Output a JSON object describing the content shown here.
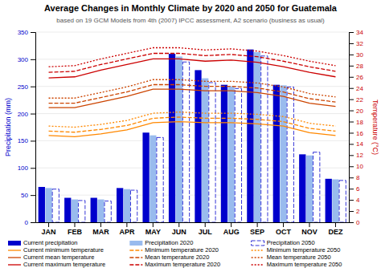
{
  "chart_data": {
    "type": "bar",
    "title": "Average Changes in Monthly Climate by 2020 and 2050 for Guatemala",
    "subtitle": "based on 19 GCM Models from 4th (2007) IPCC assessment, A2 scenario (business as usual)",
    "ylabel": "Precipitation (mm)",
    "y2label": "Temperature (°C)",
    "categories": [
      "JAN",
      "FEB",
      "MAR",
      "APR",
      "MAY",
      "JUN",
      "JUL",
      "AUG",
      "SEP",
      "OCT",
      "NOV",
      "DEZ"
    ],
    "ylim": [
      0,
      350
    ],
    "yticks": [
      0,
      50,
      100,
      150,
      200,
      250,
      300,
      350
    ],
    "y2lim": [
      0,
      34
    ],
    "y2ticks": [
      0,
      2,
      4,
      6,
      8,
      10,
      12,
      14,
      16,
      18,
      20,
      22,
      24,
      26,
      28,
      30,
      32,
      34
    ],
    "grid": true,
    "legend": "bottom",
    "series": [
      {
        "name": "Current precipitation",
        "type": "bar",
        "color": "#0000cc",
        "values": [
          65,
          45,
          45,
          63,
          165,
          310,
          280,
          253,
          318,
          253,
          125,
          80
        ]
      },
      {
        "name": "Precipitation 2020",
        "type": "bar",
        "color": "#99bbee",
        "values": [
          63,
          42,
          42,
          61,
          160,
          305,
          265,
          250,
          313,
          252,
          123,
          79
        ]
      },
      {
        "name": "Precipitation 2050",
        "type": "bar",
        "color": "#0000cc",
        "line_style": "dashed",
        "values": [
          61,
          40,
          39,
          59,
          156,
          295,
          257,
          246,
          306,
          249,
          129,
          77
        ]
      },
      {
        "name": "Current minimum temperature",
        "type": "line",
        "axis": "y2",
        "color": "#ff8800",
        "line_style": "solid",
        "values": [
          15.5,
          15.3,
          15.8,
          16.5,
          17.8,
          18.0,
          17.8,
          17.8,
          17.6,
          17.2,
          16.0,
          15.5
        ]
      },
      {
        "name": "Minimum temperature 2020",
        "type": "line",
        "axis": "y2",
        "color": "#ff8800",
        "line_style": "dashed",
        "values": [
          16.3,
          16.1,
          16.6,
          17.3,
          18.6,
          18.8,
          18.6,
          18.6,
          18.4,
          18.0,
          16.8,
          16.3
        ]
      },
      {
        "name": "Minimum temperature 2050",
        "type": "line",
        "axis": "y2",
        "color": "#ff8800",
        "line_style": "dotted",
        "values": [
          17.2,
          17.0,
          17.5,
          18.2,
          19.5,
          19.7,
          19.5,
          19.5,
          19.3,
          18.9,
          17.7,
          17.2
        ]
      },
      {
        "name": "Current mean temperature",
        "type": "line",
        "axis": "y2",
        "color": "#cc4400",
        "line_style": "solid",
        "values": [
          20.5,
          20.5,
          21.5,
          22.5,
          23.8,
          23.8,
          23.5,
          23.5,
          23.2,
          22.5,
          21.3,
          20.7
        ]
      },
      {
        "name": "Mean temperature 2020",
        "type": "line",
        "axis": "y2",
        "color": "#cc4400",
        "line_style": "dashed",
        "values": [
          21.3,
          21.3,
          22.3,
          23.3,
          24.6,
          24.6,
          24.3,
          24.3,
          24.0,
          23.3,
          22.1,
          21.5
        ]
      },
      {
        "name": "Mean temperature 2050",
        "type": "line",
        "axis": "y2",
        "color": "#cc4400",
        "line_style": "dotted",
        "values": [
          22.2,
          22.2,
          23.2,
          24.2,
          25.5,
          25.5,
          25.2,
          25.2,
          24.9,
          24.2,
          23.0,
          22.4
        ]
      },
      {
        "name": "Current maximum temperature",
        "type": "line",
        "axis": "y2",
        "color": "#cc0000",
        "line_style": "solid",
        "values": [
          25.8,
          26.0,
          27.2,
          28.2,
          29.2,
          29.2,
          28.8,
          29.0,
          28.6,
          27.8,
          26.8,
          26.0
        ]
      },
      {
        "name": "Maximum temperature 2020",
        "type": "line",
        "axis": "y2",
        "color": "#cc0000",
        "line_style": "dashed",
        "values": [
          26.8,
          27.0,
          28.2,
          29.2,
          30.2,
          30.2,
          29.8,
          30.0,
          29.6,
          28.8,
          27.8,
          27.0
        ]
      },
      {
        "name": "Maximum temperature 2050",
        "type": "line",
        "axis": "y2",
        "color": "#cc0000",
        "line_style": "dotted",
        "values": [
          27.8,
          28.0,
          29.2,
          30.2,
          31.2,
          31.2,
          30.8,
          31.0,
          30.6,
          29.8,
          28.8,
          28.0
        ]
      }
    ]
  }
}
